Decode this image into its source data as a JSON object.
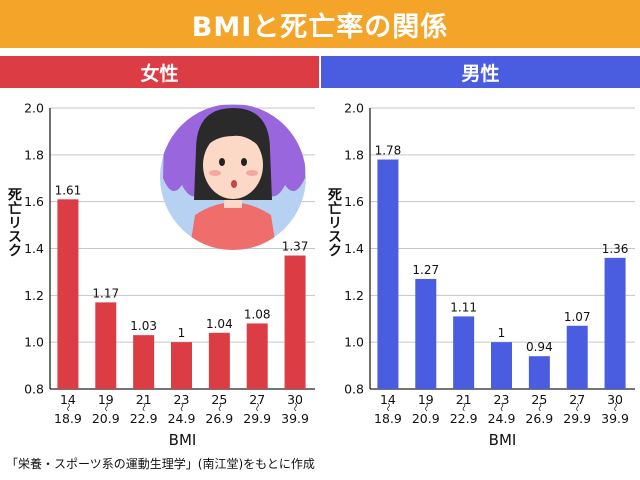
{
  "title": "BMIと死亡率の関係",
  "panels": {
    "female_label": "女性",
    "male_label": "男性"
  },
  "source": "「栄養・スポーツ系の運動生理学」(南江堂)をもとに作成",
  "colors": {
    "title_bg": "#f5a42a",
    "female": "#dc3c44",
    "male": "#4a5de0",
    "illustration_bg": "#b7d1f2",
    "illustration_hair": "#9a66dd"
  },
  "chart_data": [
    {
      "type": "bar",
      "name": "female",
      "categories": [
        [
          "14",
          "18.9"
        ],
        [
          "19",
          "20.9"
        ],
        [
          "21",
          "22.9"
        ],
        [
          "23",
          "24.9"
        ],
        [
          "25",
          "26.9"
        ],
        [
          "27",
          "29.9"
        ],
        [
          "30",
          "39.9"
        ]
      ],
      "values": [
        1.61,
        1.17,
        1.03,
        1,
        1.04,
        1.08,
        1.37
      ],
      "data_labels": [
        "1.61",
        "1.17",
        "1.03",
        "1",
        "1.04",
        "1.08",
        "1.37"
      ],
      "xlabel": "BMI",
      "ylabel": "死亡リスク",
      "ylim": [
        0.8,
        2.0
      ],
      "yticks": [
        "0.8",
        "1.0",
        "1.2",
        "1.4",
        "1.6",
        "1.8",
        "2.0"
      ],
      "grid": true
    },
    {
      "type": "bar",
      "name": "male",
      "categories": [
        [
          "14",
          "18.9"
        ],
        [
          "19",
          "20.9"
        ],
        [
          "21",
          "22.9"
        ],
        [
          "23",
          "24.9"
        ],
        [
          "25",
          "26.9"
        ],
        [
          "27",
          "29.9"
        ],
        [
          "30",
          "39.9"
        ]
      ],
      "values": [
        1.78,
        1.27,
        1.11,
        1,
        0.94,
        1.07,
        1.36
      ],
      "data_labels": [
        "1.78",
        "1.27",
        "1.11",
        "1",
        "0.94",
        "1.07",
        "1.36"
      ],
      "xlabel": "BMI",
      "ylabel": "死亡リスク",
      "ylim": [
        0.8,
        2.0
      ],
      "yticks": [
        "0.8",
        "1.0",
        "1.2",
        "1.4",
        "1.6",
        "1.8",
        "2.0"
      ],
      "grid": true
    }
  ]
}
